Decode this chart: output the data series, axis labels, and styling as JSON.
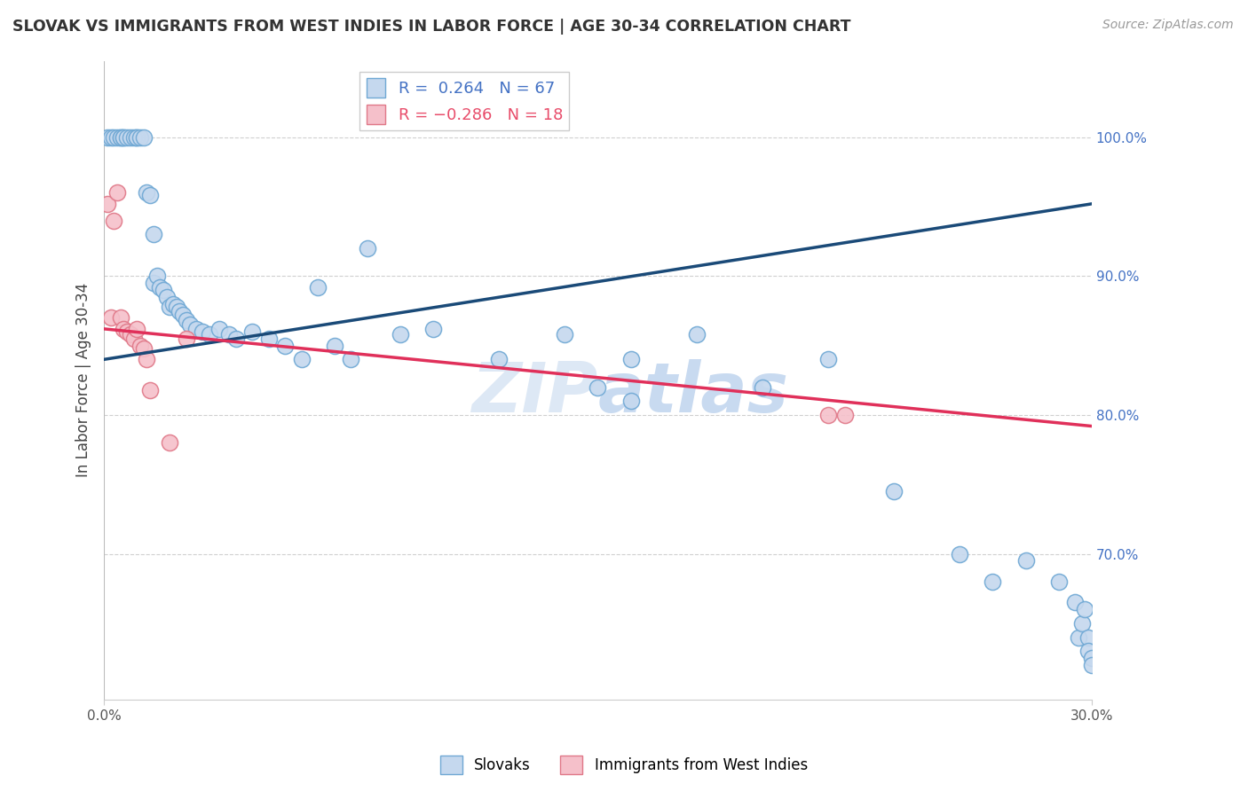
{
  "title": "SLOVAK VS IMMIGRANTS FROM WEST INDIES IN LABOR FORCE | AGE 30-34 CORRELATION CHART",
  "source": "Source: ZipAtlas.com",
  "ylabel": "In Labor Force | Age 30-34",
  "xmin": 0.0,
  "xmax": 0.3,
  "ymin": 0.595,
  "ymax": 1.055,
  "ytick_positions": [
    0.7,
    0.8,
    0.9,
    1.0
  ],
  "ytick_labels": [
    "70.0%",
    "80.0%",
    "90.0%",
    "100.0%"
  ],
  "blue_R": "0.264",
  "blue_N": "67",
  "pink_R": "-0.286",
  "pink_N": "18",
  "blue_fill": "#c5d8ee",
  "blue_edge": "#6fa8d4",
  "pink_fill": "#f5c0ca",
  "pink_edge": "#e07888",
  "blue_line": "#1a4a78",
  "pink_line": "#e0305a",
  "watermark_color": "#dde8f5",
  "blue_line_y0": 0.84,
  "blue_line_y1": 0.952,
  "pink_line_y0": 0.862,
  "pink_line_y1": 0.792,
  "blue_x": [
    0.001,
    0.002,
    0.003,
    0.004,
    0.005,
    0.005,
    0.006,
    0.006,
    0.007,
    0.008,
    0.009,
    0.01,
    0.01,
    0.011,
    0.012,
    0.013,
    0.014,
    0.015,
    0.015,
    0.016,
    0.017,
    0.018,
    0.019,
    0.02,
    0.021,
    0.022,
    0.023,
    0.024,
    0.025,
    0.026,
    0.028,
    0.03,
    0.032,
    0.035,
    0.038,
    0.04,
    0.045,
    0.05,
    0.055,
    0.06,
    0.065,
    0.07,
    0.075,
    0.08,
    0.09,
    0.1,
    0.12,
    0.14,
    0.16,
    0.18,
    0.15,
    0.16,
    0.2,
    0.22,
    0.24,
    0.26,
    0.27,
    0.28,
    0.29,
    0.295,
    0.296,
    0.297,
    0.298,
    0.299,
    0.299,
    0.3,
    0.3
  ],
  "blue_y": [
    1.0,
    1.0,
    1.0,
    1.0,
    1.0,
    1.0,
    1.0,
    1.0,
    1.0,
    1.0,
    1.0,
    1.0,
    1.0,
    1.0,
    1.0,
    0.96,
    0.958,
    0.93,
    0.895,
    0.9,
    0.892,
    0.89,
    0.885,
    0.878,
    0.88,
    0.878,
    0.875,
    0.872,
    0.868,
    0.865,
    0.862,
    0.86,
    0.858,
    0.862,
    0.858,
    0.855,
    0.86,
    0.855,
    0.85,
    0.84,
    0.892,
    0.85,
    0.84,
    0.92,
    0.858,
    0.862,
    0.84,
    0.858,
    0.84,
    0.858,
    0.82,
    0.81,
    0.82,
    0.84,
    0.745,
    0.7,
    0.68,
    0.695,
    0.68,
    0.665,
    0.64,
    0.65,
    0.66,
    0.64,
    0.63,
    0.625,
    0.62
  ],
  "pink_x": [
    0.001,
    0.002,
    0.003,
    0.004,
    0.005,
    0.006,
    0.007,
    0.008,
    0.009,
    0.01,
    0.011,
    0.012,
    0.013,
    0.014,
    0.02,
    0.025,
    0.22,
    0.225
  ],
  "pink_y": [
    0.952,
    0.87,
    0.94,
    0.96,
    0.87,
    0.862,
    0.86,
    0.858,
    0.855,
    0.862,
    0.85,
    0.848,
    0.84,
    0.818,
    0.78,
    0.855,
    0.8,
    0.8
  ]
}
